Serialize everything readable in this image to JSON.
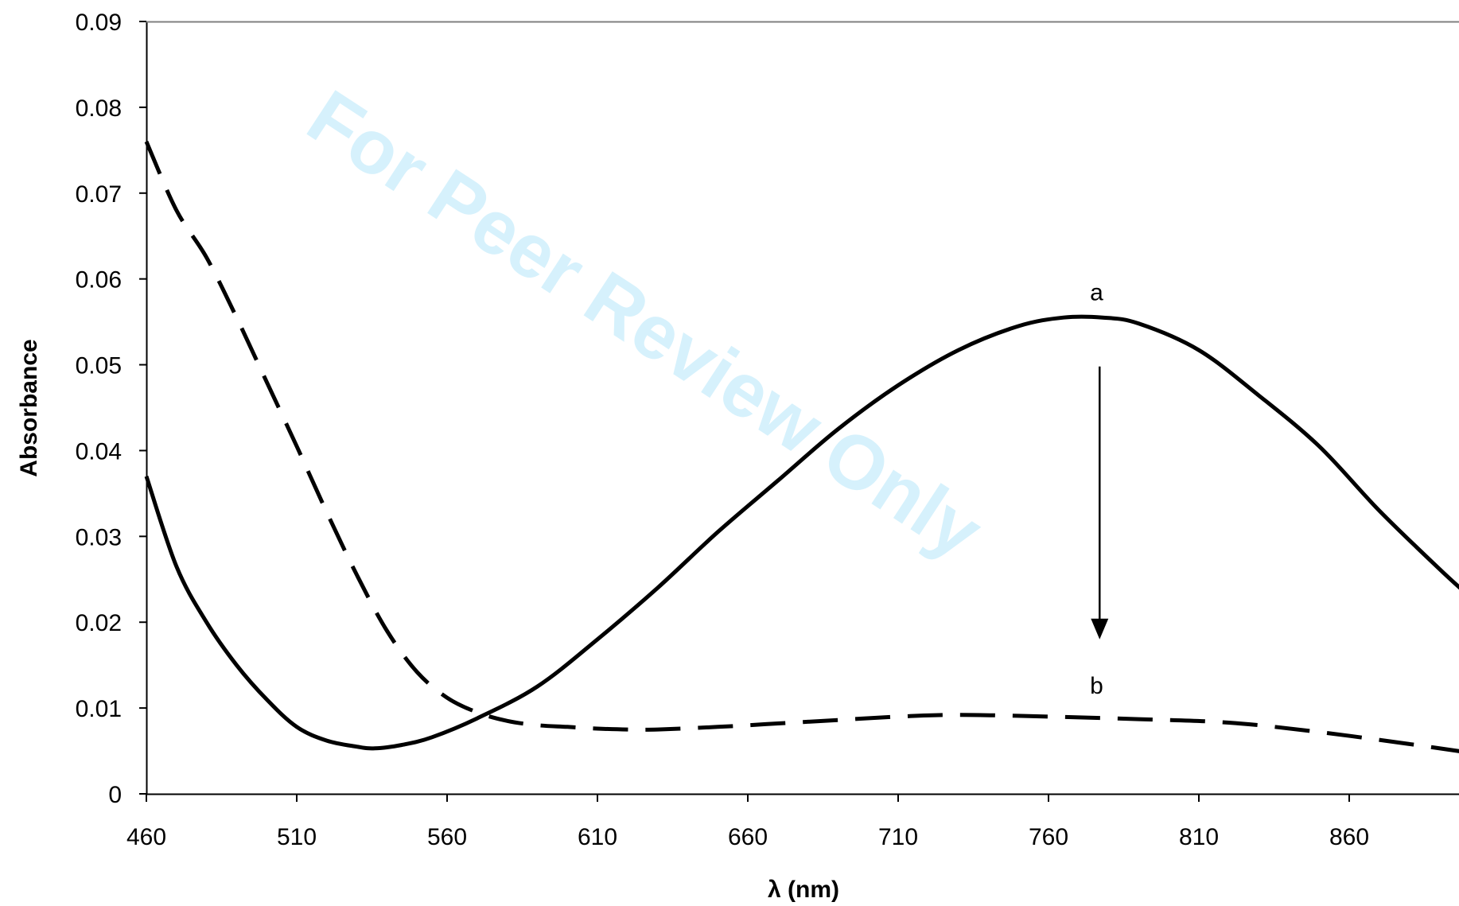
{
  "chart_data": {
    "type": "line",
    "xlabel": "λ (nm)",
    "ylabel": "Absorbance",
    "xlim": [
      460,
      900
    ],
    "ylim": [
      0,
      0.09
    ],
    "x_ticks": [
      "460",
      "510",
      "560",
      "610",
      "660",
      "710",
      "760",
      "810",
      "860"
    ],
    "y_ticks": [
      "0",
      "0.01",
      "0.02",
      "0.03",
      "0.04",
      "0.05",
      "0.06",
      "0.07",
      "0.08",
      "0.09"
    ],
    "grid": false,
    "watermark": "For Peer Review Only",
    "annotations": [
      {
        "text": "a",
        "x": 776,
        "y": 0.0575
      },
      {
        "text": "b",
        "x": 776,
        "y": 0.0117
      }
    ],
    "arrow": {
      "x": 777,
      "y_start": 0.0498,
      "y_end": 0.018,
      "direction": "down"
    },
    "series": [
      {
        "name": "a",
        "style": "solid",
        "color": "#000000",
        "x": [
          460,
          470,
          480,
          490,
          500,
          510,
          520,
          530,
          536,
          545,
          555,
          570,
          590,
          610,
          630,
          650,
          670,
          690,
          710,
          730,
          750,
          765,
          778,
          790,
          810,
          830,
          850,
          870,
          890,
          900
        ],
        "y": [
          0.037,
          0.0265,
          0.02,
          0.015,
          0.011,
          0.0078,
          0.0062,
          0.0055,
          0.0053,
          0.0057,
          0.0066,
          0.0088,
          0.0125,
          0.018,
          0.024,
          0.0305,
          0.0365,
          0.0425,
          0.0476,
          0.0517,
          0.0545,
          0.0555,
          0.0555,
          0.0548,
          0.0517,
          0.0464,
          0.0405,
          0.033,
          0.0262,
          0.023
        ]
      },
      {
        "name": "b",
        "style": "dashed",
        "color": "#000000",
        "x": [
          460,
          470,
          480,
          490,
          500,
          510,
          520,
          530,
          540,
          550,
          560,
          570,
          580,
          590,
          600,
          610,
          620,
          630,
          650,
          670,
          690,
          710,
          730,
          760,
          790,
          820,
          850,
          880,
          900
        ],
        "y": [
          0.076,
          0.068,
          0.0625,
          0.0555,
          0.048,
          0.0405,
          0.0328,
          0.0255,
          0.019,
          0.0142,
          0.0112,
          0.0095,
          0.0085,
          0.008,
          0.0078,
          0.0076,
          0.0075,
          0.0075,
          0.0078,
          0.0082,
          0.0086,
          0.009,
          0.0092,
          0.009,
          0.0087,
          0.0083,
          0.0072,
          0.0058,
          0.0048
        ]
      }
    ]
  }
}
